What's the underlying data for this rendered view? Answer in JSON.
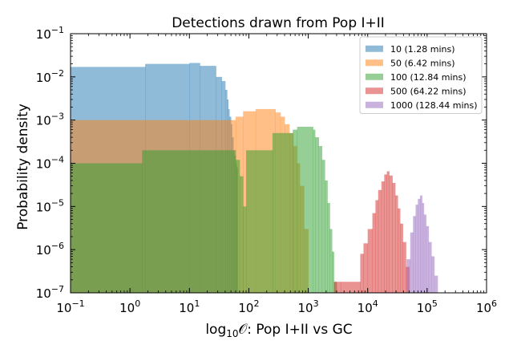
{
  "chart_data": {
    "type": "histogram",
    "title": "Detections drawn from Pop I+II",
    "ylabel": "Probability density",
    "xlabel_prefix": "log",
    "xlabel_sub": "10",
    "xlabel_rest": "𝒪: Pop I+II vs GC",
    "xscale": "log",
    "yscale": "log",
    "xlim": [
      0.1,
      1000000
    ],
    "ylim": [
      1e-07,
      0.1
    ],
    "x_tick_exponents": [
      -1,
      0,
      1,
      2,
      3,
      4,
      5,
      6
    ],
    "y_tick_exponents": [
      -7,
      -6,
      -5,
      -4,
      -3,
      -2,
      -1
    ],
    "tick_base": "10",
    "legend_position": "upper right",
    "series": [
      {
        "name": "10 (1.28 mins)",
        "color": "#1f77b4",
        "bins": [
          [
            0.1,
            1.8,
            0.017
          ],
          [
            1.8,
            10,
            0.02
          ],
          [
            10,
            15,
            0.021
          ],
          [
            15,
            28,
            0.018
          ],
          [
            28,
            35,
            0.01
          ],
          [
            35,
            40,
            0.008
          ],
          [
            40,
            43,
            0.005
          ],
          [
            43,
            45,
            0.003
          ],
          [
            45,
            47,
            0.0018
          ],
          [
            47,
            50,
            0.0012
          ],
          [
            50,
            52,
            0.0008
          ],
          [
            52,
            55,
            0.0004
          ],
          [
            55,
            57,
            0.0002
          ],
          [
            57,
            60,
            0.00015
          ],
          [
            60,
            62,
            0.0001
          ],
          [
            62,
            65,
            8e-05
          ]
        ]
      },
      {
        "name": "50 (6.42 mins)",
        "color": "#ff7f0e",
        "bins": [
          [
            0.1,
            60,
            0.001
          ],
          [
            60,
            80,
            0.0012
          ],
          [
            80,
            130,
            0.0016
          ],
          [
            130,
            280,
            0.0018
          ],
          [
            280,
            340,
            0.0015
          ],
          [
            340,
            400,
            0.0012
          ],
          [
            400,
            480,
            0.0008
          ],
          [
            480,
            560,
            0.0005
          ],
          [
            560,
            640,
            0.00025
          ],
          [
            640,
            720,
            0.0001
          ],
          [
            720,
            850,
            3e-05
          ],
          [
            850,
            1000,
            3e-06
          ]
        ]
      },
      {
        "name": "100 (12.84 mins)",
        "color": "#2ca02c",
        "bins": [
          [
            0.1,
            1.6,
            0.0001
          ],
          [
            1.6,
            60,
            0.0002
          ],
          [
            60,
            70,
            0.00012
          ],
          [
            70,
            80,
            5e-05
          ],
          [
            80,
            90,
            1e-05
          ],
          [
            90,
            250,
            0.0002
          ],
          [
            250,
            550,
            0.0005
          ],
          [
            550,
            650,
            0.0006
          ],
          [
            650,
            1200,
            0.0007
          ],
          [
            1200,
            1300,
            0.0006
          ],
          [
            1300,
            1500,
            0.0004
          ],
          [
            1500,
            1700,
            0.00025
          ],
          [
            1700,
            1900,
            0.00012
          ],
          [
            1900,
            2100,
            4e-05
          ],
          [
            2100,
            2300,
            1.2e-05
          ],
          [
            2300,
            2500,
            3e-06
          ],
          [
            2500,
            2700,
            9e-07
          ],
          [
            2700,
            3000,
            1.8e-07
          ]
        ]
      },
      {
        "name": "500 (64.22 mins)",
        "color": "#d62728",
        "bins": [
          [
            2700,
            3500,
            1.8e-07
          ],
          [
            3500,
            7500,
            1.8e-07
          ],
          [
            7500,
            8500,
            8e-07
          ],
          [
            8500,
            10000,
            1.4e-06
          ],
          [
            10000,
            12000,
            3e-06
          ],
          [
            12000,
            13500,
            7e-06
          ],
          [
            13500,
            15000,
            1.4e-05
          ],
          [
            15000,
            17000,
            2.4e-05
          ],
          [
            17000,
            19000,
            3.8e-05
          ],
          [
            19000,
            21000,
            5.5e-05
          ],
          [
            21000,
            23000,
            6.5e-05
          ],
          [
            23000,
            26000,
            5.2e-05
          ],
          [
            26000,
            29000,
            3.5e-05
          ],
          [
            29000,
            32000,
            1.8e-05
          ],
          [
            32000,
            35000,
            9e-06
          ],
          [
            35000,
            39000,
            4e-06
          ],
          [
            39000,
            44000,
            1.5e-06
          ],
          [
            44000,
            50000,
            4e-07
          ]
        ]
      },
      {
        "name": "1000 (128.44 mins)",
        "color": "#9467bd",
        "bins": [
          [
            45000,
            52000,
            6e-07
          ],
          [
            52000,
            58000,
            2.5e-06
          ],
          [
            58000,
            64000,
            6e-06
          ],
          [
            64000,
            70000,
            1.1e-05
          ],
          [
            70000,
            76000,
            1.5e-05
          ],
          [
            76000,
            82000,
            1.8e-05
          ],
          [
            82000,
            88000,
            1.2e-05
          ],
          [
            88000,
            96000,
            6.5e-06
          ],
          [
            96000,
            106000,
            3.5e-06
          ],
          [
            106000,
            118000,
            1.5e-06
          ],
          [
            118000,
            132000,
            7e-07
          ],
          [
            132000,
            150000,
            2.5e-07
          ]
        ]
      }
    ]
  }
}
